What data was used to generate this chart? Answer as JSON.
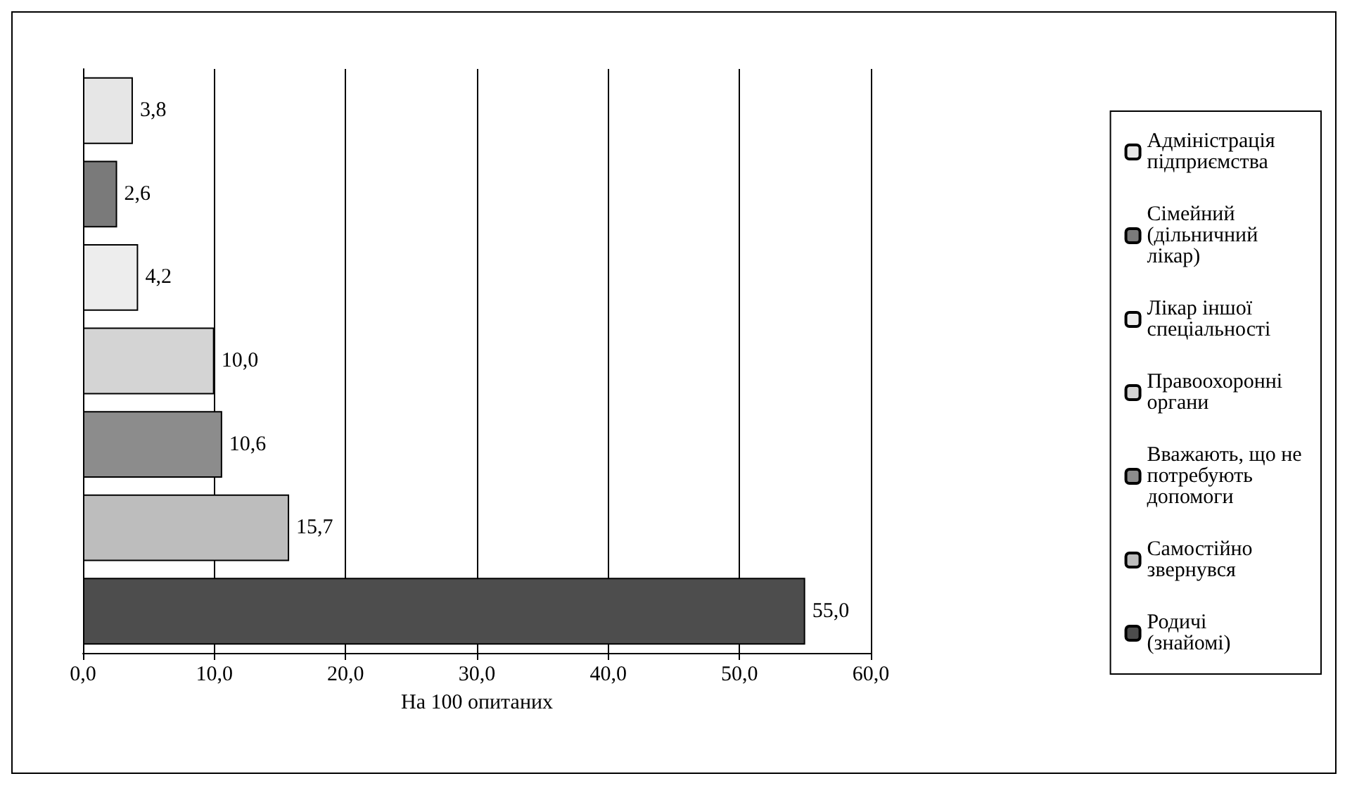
{
  "chart_data": {
    "type": "bar",
    "orientation": "horizontal",
    "stacked": true,
    "xlabel": "На 100 опитаних",
    "categories": [
      null,
      null,
      null,
      null,
      null,
      null,
      null
    ],
    "series": [
      {
        "name": "Адміністрація підприємства",
        "color": "#e6e6e6",
        "values": [
          3.8,
          null,
          null,
          null,
          null,
          null,
          null
        ],
        "value_labels": [
          "3,8",
          null,
          null,
          null,
          null,
          null,
          null
        ]
      },
      {
        "name": "Сімейний (дільничний лікар)",
        "color": "#7a7a7a",
        "values": [
          null,
          2.6,
          null,
          null,
          null,
          null,
          null
        ],
        "value_labels": [
          null,
          "2,6",
          null,
          null,
          null,
          null,
          null
        ]
      },
      {
        "name": "Лікар іншої спеціальності",
        "color": "#ededed",
        "values": [
          null,
          null,
          4.2,
          null,
          null,
          null,
          null
        ],
        "value_labels": [
          null,
          null,
          "4,2",
          null,
          null,
          null,
          null
        ]
      },
      {
        "name": "Правоохоронні органи",
        "color": "#d4d4d4",
        "values": [
          null,
          null,
          null,
          10.0,
          null,
          null,
          null
        ],
        "value_labels": [
          null,
          null,
          null,
          "10,0",
          null,
          null,
          null
        ]
      },
      {
        "name": "Вважають, що не потребують допомоги",
        "color": "#8c8c8c",
        "values": [
          null,
          null,
          null,
          null,
          10.6,
          null,
          null
        ],
        "value_labels": [
          null,
          null,
          null,
          null,
          "10,6",
          null,
          null
        ]
      },
      {
        "name": "Самостійно звернувся",
        "color": "#bdbdbd",
        "values": [
          null,
          null,
          null,
          null,
          null,
          15.7,
          null
        ],
        "value_labels": [
          null,
          null,
          null,
          null,
          null,
          "15,7",
          null
        ]
      },
      {
        "name": "Родичі (знайомі)",
        "color": "#4d4d4d",
        "values": [
          null,
          null,
          null,
          null,
          null,
          null,
          55.0
        ],
        "value_labels": [
          null,
          null,
          null,
          null,
          null,
          null,
          "55,0"
        ]
      }
    ],
    "xlim": [
      0,
      60
    ],
    "xticks": [
      {
        "value": 0,
        "label": "0,0"
      },
      {
        "value": 10,
        "label": "10,0"
      },
      {
        "value": 20,
        "label": "20,0"
      },
      {
        "value": 30,
        "label": "30,0"
      },
      {
        "value": 40,
        "label": "40,0"
      },
      {
        "value": 50,
        "label": "50,0"
      },
      {
        "value": 60,
        "label": "60,0"
      }
    ],
    "grid": "x",
    "legend": "right",
    "tick_labels": "x"
  }
}
